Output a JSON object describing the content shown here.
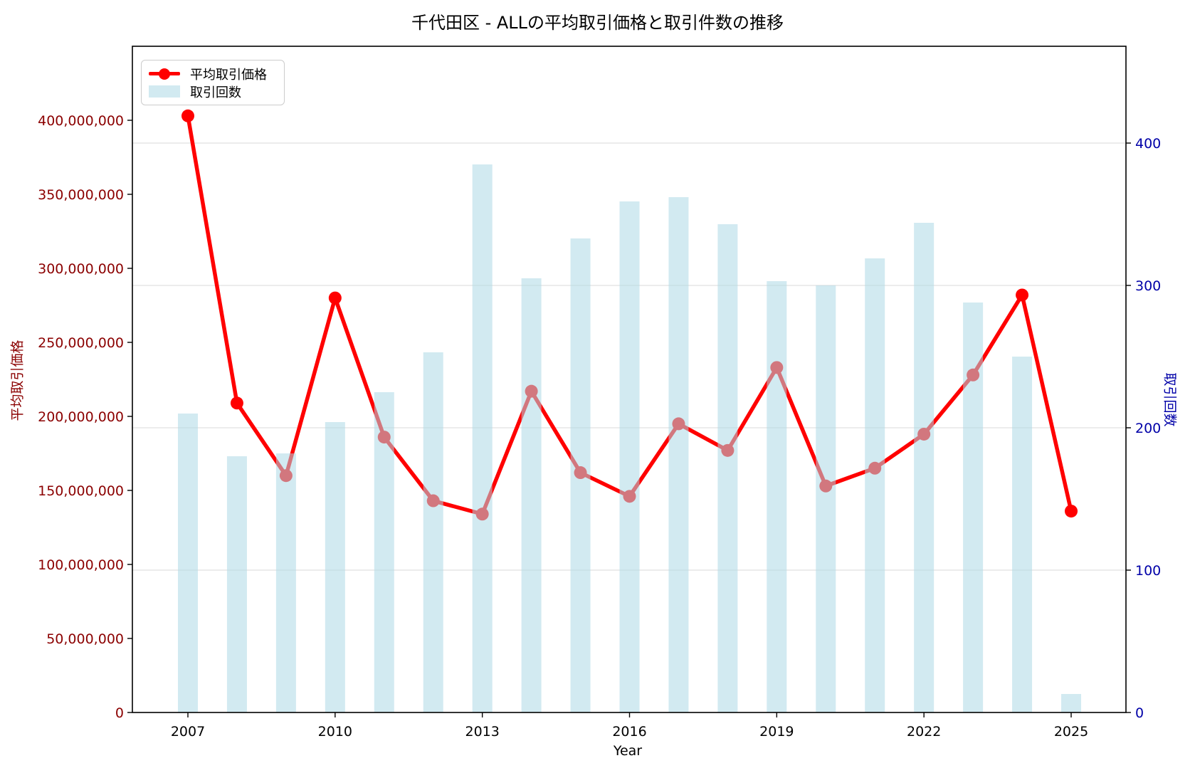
{
  "title": "千代田区 - ALLの平均取引価格と取引件数の推移",
  "legend": {
    "items": [
      {
        "label": "平均取引価格",
        "swatch": "red-line-marker"
      },
      {
        "label": "取引回数",
        "swatch": "lightblue-bar"
      }
    ]
  },
  "axes": {
    "x_label": "Year",
    "y_left_label": "平均取引価格",
    "y_right_label": "取引回数",
    "x_ticks": [
      2007,
      2010,
      2013,
      2016,
      2019,
      2022,
      2025
    ],
    "y_left_ticks": [
      {
        "v": 0,
        "label": "0"
      },
      {
        "v": 50000000,
        "label": "50,000,000"
      },
      {
        "v": 100000000,
        "label": "100,000,000"
      },
      {
        "v": 150000000,
        "label": "150,000,000"
      },
      {
        "v": 200000000,
        "label": "200,000,000"
      },
      {
        "v": 250000000,
        "label": "250,000,000"
      },
      {
        "v": 300000000,
        "label": "300,000,000"
      },
      {
        "v": 350000000,
        "label": "350,000,000"
      },
      {
        "v": 400000000,
        "label": "400,000,000"
      }
    ],
    "y_right_ticks": [
      0,
      100,
      200,
      300,
      400
    ]
  },
  "colors": {
    "line": "#ff0000",
    "marker": "#ff0000",
    "bar_fill": "#add8e6",
    "bar_alpha": 0.55,
    "left_axis_text": "#8b0000",
    "right_axis_text": "#0000a8",
    "x_axis_text": "#000000",
    "grid": "#e6e6e6",
    "frame": "#000000"
  },
  "chart_data": {
    "type": "line+bar",
    "x": [
      2007,
      2008,
      2009,
      2010,
      2011,
      2012,
      2013,
      2014,
      2015,
      2016,
      2017,
      2018,
      2019,
      2020,
      2021,
      2022,
      2023,
      2024,
      2025
    ],
    "series": [
      {
        "name": "平均取引価格",
        "type": "line",
        "axis": "left",
        "color": "#ff0000",
        "values": [
          403000000,
          209000000,
          160000000,
          280000000,
          186000000,
          143000000,
          134000000,
          217000000,
          162000000,
          146000000,
          195000000,
          177000000,
          233000000,
          153000000,
          165000000,
          188000000,
          228000000,
          282000000,
          136000000
        ]
      },
      {
        "name": "取引回数",
        "type": "bar",
        "axis": "right",
        "color": "#add8e6",
        "values": [
          210,
          180,
          182,
          204,
          225,
          253,
          385,
          305,
          333,
          359,
          362,
          343,
          303,
          300,
          319,
          344,
          288,
          250,
          13
        ]
      }
    ],
    "title": "千代田区 - ALLの平均取引価格と取引件数の推移",
    "xlabel": "Year",
    "ylabel_left": "平均取引価格",
    "ylabel_right": "取引回数",
    "y_left_range": [
      0,
      450000000
    ],
    "y_right_range": [
      0,
      468
    ],
    "grid": "horizontal, aligned to right-axis ticks",
    "legend_position": "upper-left"
  }
}
